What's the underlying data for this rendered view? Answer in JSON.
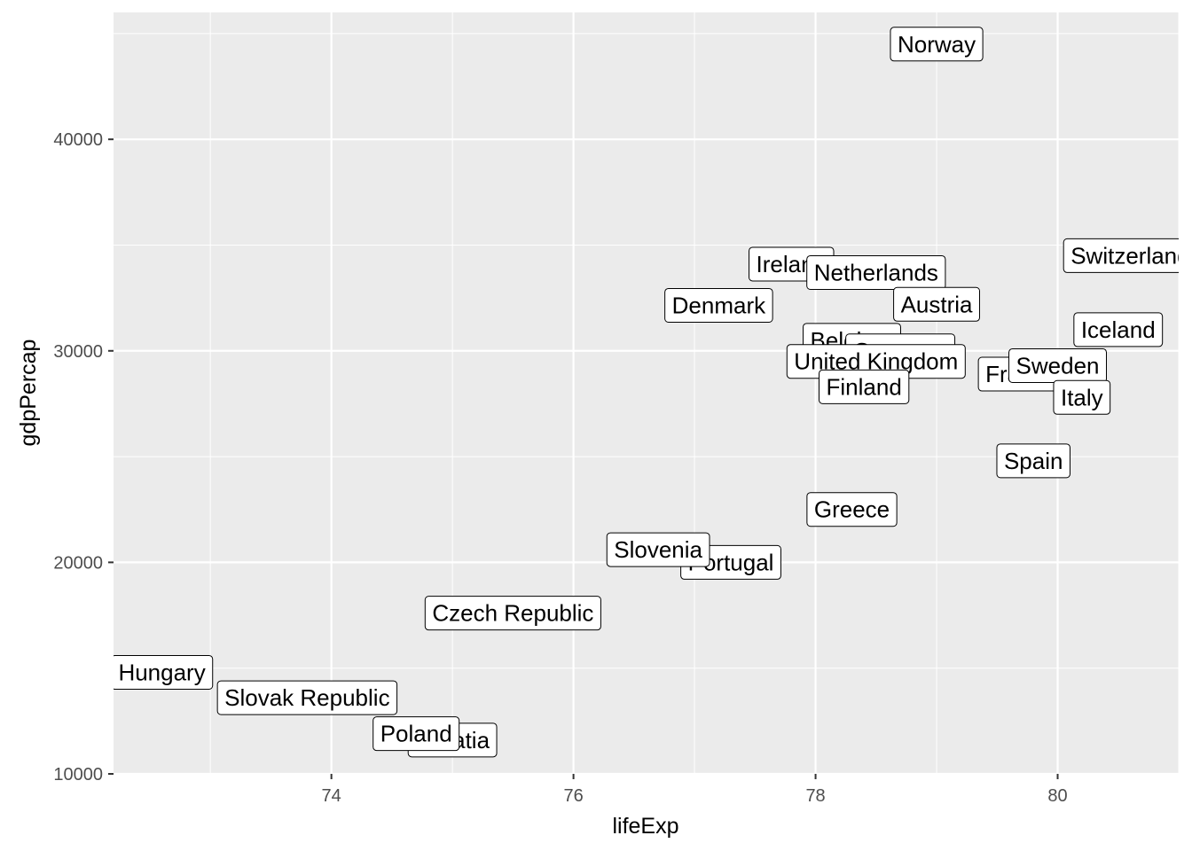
{
  "chart_data": {
    "type": "scatter",
    "xlabel": "lifeExp",
    "ylabel": "gdpPercap",
    "xlim": [
      72.2,
      81.0
    ],
    "ylim": [
      10000,
      46000
    ],
    "x_ticks": [
      74,
      76,
      78,
      80
    ],
    "x_tick_labels": [
      "74",
      "76",
      "78",
      "80"
    ],
    "y_ticks": [
      10000,
      20000,
      30000,
      40000
    ],
    "y_tick_labels": [
      "10000",
      "20000",
      "30000",
      "40000"
    ],
    "grid": true,
    "panel_color": "#ebebeb",
    "grid_color": "#ffffff",
    "points": [
      {
        "label": "Norway",
        "x": 79.0,
        "y": 44500
      },
      {
        "label": "Switzerland",
        "x": 80.6,
        "y": 34500
      },
      {
        "label": "Ireland",
        "x": 77.8,
        "y": 34100
      },
      {
        "label": "Netherlands",
        "x": 78.5,
        "y": 33700
      },
      {
        "label": "Austria",
        "x": 79.0,
        "y": 32200
      },
      {
        "label": "Denmark",
        "x": 77.2,
        "y": 32150
      },
      {
        "label": "Iceland",
        "x": 80.5,
        "y": 31000
      },
      {
        "label": "Belgium",
        "x": 78.3,
        "y": 30500
      },
      {
        "label": "Germany",
        "x": 78.7,
        "y": 30000
      },
      {
        "label": "United Kingdom",
        "x": 78.5,
        "y": 29500
      },
      {
        "label": "France",
        "x": 79.7,
        "y": 28900
      },
      {
        "label": "Sweden",
        "x": 80.0,
        "y": 29300
      },
      {
        "label": "Finland",
        "x": 78.4,
        "y": 28300
      },
      {
        "label": "Italy",
        "x": 80.2,
        "y": 27800
      },
      {
        "label": "Spain",
        "x": 79.8,
        "y": 24800
      },
      {
        "label": "Greece",
        "x": 78.3,
        "y": 22500
      },
      {
        "label": "Portugal",
        "x": 77.3,
        "y": 20000
      },
      {
        "label": "Slovenia",
        "x": 76.7,
        "y": 20600
      },
      {
        "label": "Czech Republic",
        "x": 75.5,
        "y": 17600
      },
      {
        "label": "Hungary",
        "x": 72.6,
        "y": 14800
      },
      {
        "label": "Slovak Republic",
        "x": 73.8,
        "y": 13600
      },
      {
        "label": "Croatia",
        "x": 75.0,
        "y": 11600
      },
      {
        "label": "Poland",
        "x": 74.7,
        "y": 11900
      }
    ]
  }
}
